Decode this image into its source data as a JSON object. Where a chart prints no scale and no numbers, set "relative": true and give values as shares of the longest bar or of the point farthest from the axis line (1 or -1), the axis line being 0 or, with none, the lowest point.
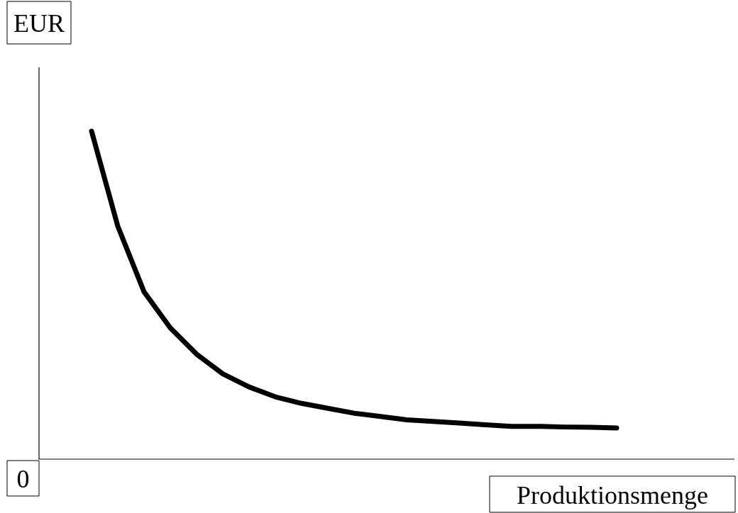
{
  "chart_data": {
    "type": "line",
    "relative": true,
    "xlabel": "Produktionsmenge",
    "ylabel": "EUR",
    "annotations": [
      "0"
    ],
    "categories": [
      null,
      null,
      null,
      null,
      null,
      null,
      null,
      null,
      null,
      null,
      null,
      null,
      null,
      null,
      null,
      null,
      null,
      null,
      null,
      null,
      null,
      null,
      null,
      null,
      null,
      null,
      null
    ],
    "series": [
      {
        "color": "#000000",
        "values": [
          null,
          null,
          1.0,
          0.71,
          0.51,
          0.4,
          0.32,
          0.26,
          0.22,
          0.19,
          0.17,
          0.155,
          0.14,
          0.13,
          0.12,
          0.115,
          0.11,
          0.105,
          0.1,
          0.1,
          0.098,
          0.097,
          0.095,
          null,
          null,
          null,
          null
        ]
      }
    ],
    "grid": false,
    "marker": "none",
    "line_style": "solid"
  }
}
